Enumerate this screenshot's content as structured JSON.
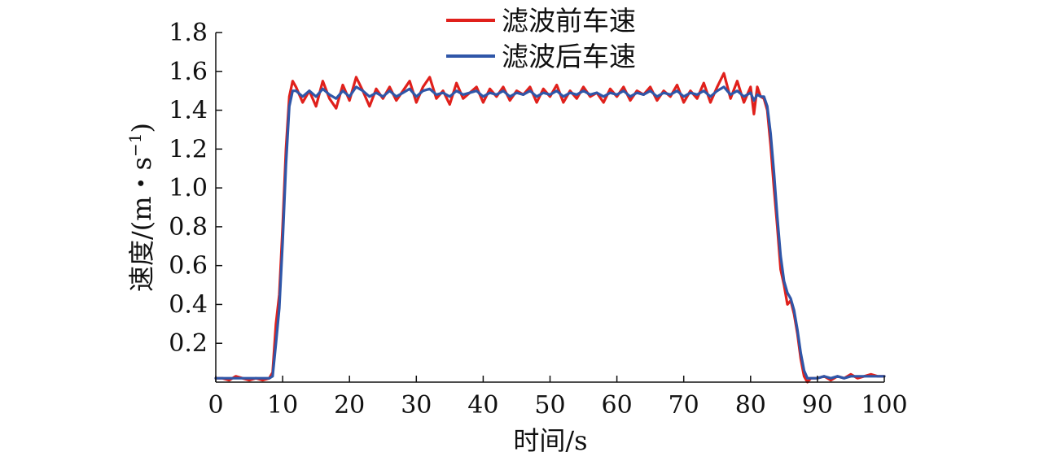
{
  "chart_data": {
    "type": "line",
    "xlabel": "时间/s",
    "ylabel": "速度/(m・s",
    "ylabel_superscript": "−1",
    "ylabel_close": ")",
    "xlim": [
      0,
      100
    ],
    "ylim": [
      0,
      1.8
    ],
    "xticks": [
      0,
      10,
      20,
      30,
      40,
      50,
      60,
      70,
      80,
      90,
      100
    ],
    "xtick_labels": [
      "0",
      "10",
      "20",
      "30",
      "40",
      "50",
      "60",
      "70",
      "80",
      "90",
      "100"
    ],
    "yticks": [
      0.2,
      0.4,
      0.6,
      0.8,
      1.0,
      1.2,
      1.4,
      1.6,
      1.8
    ],
    "ytick_labels": [
      "0.2",
      "0.4",
      "0.6",
      "0.8",
      "1.0",
      "1.2",
      "1.4",
      "1.6",
      "1.8"
    ],
    "grid": false,
    "legend_position": "top-center",
    "series": [
      {
        "name": "滤波前车速",
        "color": "#e0201b",
        "points": [
          [
            0,
            0.02
          ],
          [
            1,
            0.02
          ],
          [
            2,
            0.01
          ],
          [
            3,
            0.03
          ],
          [
            4,
            0.02
          ],
          [
            5,
            0.01
          ],
          [
            6,
            0.02
          ],
          [
            7,
            0.01
          ],
          [
            8,
            0.02
          ],
          [
            8.5,
            0.05
          ],
          [
            9,
            0.3
          ],
          [
            9.5,
            0.45
          ],
          [
            10,
            0.8
          ],
          [
            10.5,
            1.2
          ],
          [
            11,
            1.47
          ],
          [
            11.5,
            1.55
          ],
          [
            12,
            1.52
          ],
          [
            13,
            1.44
          ],
          [
            14,
            1.5
          ],
          [
            15,
            1.42
          ],
          [
            16,
            1.55
          ],
          [
            17,
            1.46
          ],
          [
            18,
            1.41
          ],
          [
            19,
            1.53
          ],
          [
            20,
            1.45
          ],
          [
            21,
            1.57
          ],
          [
            22,
            1.5
          ],
          [
            23,
            1.42
          ],
          [
            24,
            1.51
          ],
          [
            25,
            1.46
          ],
          [
            26,
            1.52
          ],
          [
            27,
            1.45
          ],
          [
            28,
            1.5
          ],
          [
            29,
            1.55
          ],
          [
            30,
            1.44
          ],
          [
            31,
            1.52
          ],
          [
            32,
            1.57
          ],
          [
            33,
            1.46
          ],
          [
            34,
            1.5
          ],
          [
            35,
            1.43
          ],
          [
            36,
            1.54
          ],
          [
            37,
            1.46
          ],
          [
            38,
            1.49
          ],
          [
            39,
            1.52
          ],
          [
            40,
            1.44
          ],
          [
            41,
            1.51
          ],
          [
            42,
            1.47
          ],
          [
            43,
            1.52
          ],
          [
            44,
            1.45
          ],
          [
            45,
            1.5
          ],
          [
            46,
            1.48
          ],
          [
            47,
            1.52
          ],
          [
            48,
            1.44
          ],
          [
            49,
            1.51
          ],
          [
            50,
            1.47
          ],
          [
            51,
            1.53
          ],
          [
            52,
            1.44
          ],
          [
            53,
            1.5
          ],
          [
            54,
            1.46
          ],
          [
            55,
            1.52
          ],
          [
            56,
            1.47
          ],
          [
            57,
            1.49
          ],
          [
            58,
            1.44
          ],
          [
            59,
            1.51
          ],
          [
            60,
            1.47
          ],
          [
            61,
            1.52
          ],
          [
            62,
            1.45
          ],
          [
            63,
            1.5
          ],
          [
            64,
            1.48
          ],
          [
            65,
            1.52
          ],
          [
            66,
            1.45
          ],
          [
            67,
            1.5
          ],
          [
            68,
            1.47
          ],
          [
            69,
            1.53
          ],
          [
            70,
            1.44
          ],
          [
            71,
            1.5
          ],
          [
            72,
            1.46
          ],
          [
            73,
            1.54
          ],
          [
            74,
            1.44
          ],
          [
            75,
            1.52
          ],
          [
            76,
            1.59
          ],
          [
            77,
            1.46
          ],
          [
            78,
            1.55
          ],
          [
            79,
            1.44
          ],
          [
            80,
            1.52
          ],
          [
            80.5,
            1.38
          ],
          [
            81,
            1.52
          ],
          [
            81.5,
            1.47
          ],
          [
            82,
            1.46
          ],
          [
            82.5,
            1.4
          ],
          [
            83,
            1.22
          ],
          [
            83.5,
            1.0
          ],
          [
            84,
            0.8
          ],
          [
            84.5,
            0.58
          ],
          [
            85,
            0.5
          ],
          [
            85.5,
            0.4
          ],
          [
            86,
            0.42
          ],
          [
            86.5,
            0.35
          ],
          [
            87,
            0.25
          ],
          [
            87.5,
            0.12
          ],
          [
            88,
            0.03
          ],
          [
            88.5,
            0.0
          ],
          [
            89,
            0.02
          ],
          [
            90,
            0.02
          ],
          [
            91,
            0.03
          ],
          [
            92,
            0.01
          ],
          [
            93,
            0.03
          ],
          [
            94,
            0.02
          ],
          [
            95,
            0.04
          ],
          [
            96,
            0.02
          ],
          [
            97,
            0.03
          ],
          [
            98,
            0.04
          ],
          [
            99,
            0.03
          ],
          [
            100,
            0.03
          ]
        ]
      },
      {
        "name": "滤波后车速",
        "color": "#2f56a8",
        "points": [
          [
            0,
            0.02
          ],
          [
            1,
            0.02
          ],
          [
            2,
            0.02
          ],
          [
            3,
            0.02
          ],
          [
            4,
            0.02
          ],
          [
            5,
            0.02
          ],
          [
            6,
            0.02
          ],
          [
            7,
            0.02
          ],
          [
            8,
            0.02
          ],
          [
            8.5,
            0.03
          ],
          [
            9,
            0.2
          ],
          [
            9.5,
            0.38
          ],
          [
            10,
            0.72
          ],
          [
            10.5,
            1.12
          ],
          [
            11,
            1.42
          ],
          [
            11.5,
            1.5
          ],
          [
            12,
            1.5
          ],
          [
            13,
            1.47
          ],
          [
            14,
            1.5
          ],
          [
            15,
            1.47
          ],
          [
            16,
            1.51
          ],
          [
            17,
            1.48
          ],
          [
            18,
            1.46
          ],
          [
            19,
            1.5
          ],
          [
            20,
            1.47
          ],
          [
            21,
            1.52
          ],
          [
            22,
            1.5
          ],
          [
            23,
            1.47
          ],
          [
            24,
            1.49
          ],
          [
            25,
            1.47
          ],
          [
            26,
            1.5
          ],
          [
            27,
            1.47
          ],
          [
            28,
            1.49
          ],
          [
            29,
            1.51
          ],
          [
            30,
            1.47
          ],
          [
            31,
            1.5
          ],
          [
            32,
            1.51
          ],
          [
            33,
            1.48
          ],
          [
            34,
            1.49
          ],
          [
            35,
            1.47
          ],
          [
            36,
            1.5
          ],
          [
            37,
            1.48
          ],
          [
            38,
            1.49
          ],
          [
            39,
            1.5
          ],
          [
            40,
            1.47
          ],
          [
            41,
            1.49
          ],
          [
            42,
            1.48
          ],
          [
            43,
            1.5
          ],
          [
            44,
            1.47
          ],
          [
            45,
            1.49
          ],
          [
            46,
            1.48
          ],
          [
            47,
            1.5
          ],
          [
            48,
            1.47
          ],
          [
            49,
            1.49
          ],
          [
            50,
            1.48
          ],
          [
            51,
            1.5
          ],
          [
            52,
            1.47
          ],
          [
            53,
            1.49
          ],
          [
            54,
            1.48
          ],
          [
            55,
            1.5
          ],
          [
            56,
            1.48
          ],
          [
            57,
            1.49
          ],
          [
            58,
            1.47
          ],
          [
            59,
            1.49
          ],
          [
            60,
            1.48
          ],
          [
            61,
            1.5
          ],
          [
            62,
            1.47
          ],
          [
            63,
            1.49
          ],
          [
            64,
            1.48
          ],
          [
            65,
            1.5
          ],
          [
            66,
            1.47
          ],
          [
            67,
            1.49
          ],
          [
            68,
            1.48
          ],
          [
            69,
            1.5
          ],
          [
            70,
            1.47
          ],
          [
            71,
            1.49
          ],
          [
            72,
            1.48
          ],
          [
            73,
            1.5
          ],
          [
            74,
            1.47
          ],
          [
            75,
            1.5
          ],
          [
            76,
            1.52
          ],
          [
            77,
            1.48
          ],
          [
            78,
            1.5
          ],
          [
            79,
            1.47
          ],
          [
            80,
            1.49
          ],
          [
            80.5,
            1.45
          ],
          [
            81,
            1.48
          ],
          [
            81.5,
            1.47
          ],
          [
            82,
            1.47
          ],
          [
            82.5,
            1.42
          ],
          [
            83,
            1.28
          ],
          [
            83.5,
            1.08
          ],
          [
            84,
            0.85
          ],
          [
            84.5,
            0.65
          ],
          [
            85,
            0.52
          ],
          [
            85.5,
            0.46
          ],
          [
            86,
            0.43
          ],
          [
            86.5,
            0.37
          ],
          [
            87,
            0.27
          ],
          [
            87.5,
            0.15
          ],
          [
            88,
            0.06
          ],
          [
            88.5,
            0.02
          ],
          [
            89,
            0.02
          ],
          [
            90,
            0.02
          ],
          [
            91,
            0.03
          ],
          [
            92,
            0.02
          ],
          [
            93,
            0.03
          ],
          [
            94,
            0.02
          ],
          [
            95,
            0.03
          ],
          [
            96,
            0.03
          ],
          [
            97,
            0.03
          ],
          [
            98,
            0.03
          ],
          [
            99,
            0.03
          ],
          [
            100,
            0.03
          ]
        ]
      }
    ]
  }
}
